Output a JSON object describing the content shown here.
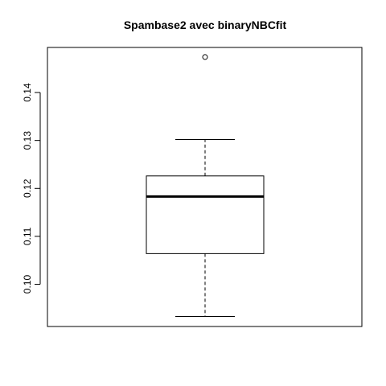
{
  "chart_data": {
    "type": "boxplot",
    "title": "Spambase2 avec binaryNBCfit",
    "xlabel": "",
    "ylabel": "",
    "ylim": [
      0.0912,
      0.1494
    ],
    "yticks": [
      "0.10",
      "0.11",
      "0.12",
      "0.13",
      "0.14"
    ],
    "grid": false,
    "legend": "none",
    "box": {
      "whisker_low": 0.0933,
      "q1": 0.1064,
      "median": 0.1183,
      "q3": 0.1226,
      "whisker_high": 0.1302,
      "outliers": [
        0.1474
      ]
    }
  }
}
